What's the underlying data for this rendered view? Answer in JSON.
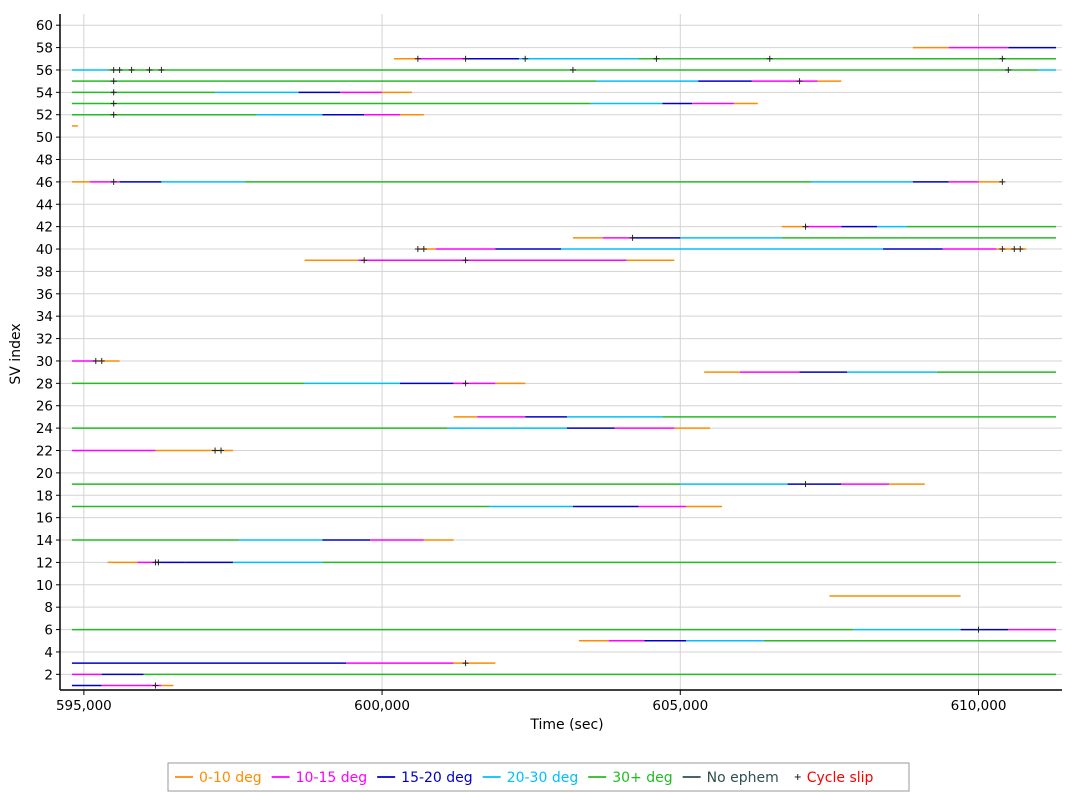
{
  "chart_data": {
    "type": "line",
    "title": "",
    "xlabel": "Time (sec)",
    "ylabel": "SV index",
    "xlim": [
      594600,
      611400
    ],
    "ylim": [
      0.6,
      61
    ],
    "x_ticks": [
      595000,
      600000,
      605000,
      610000
    ],
    "x_tick_labels": [
      "595,000",
      "600,000",
      "605,000",
      "610,000"
    ],
    "y_ticks": [
      2,
      4,
      6,
      8,
      10,
      12,
      14,
      16,
      18,
      20,
      22,
      24,
      26,
      28,
      30,
      32,
      34,
      36,
      38,
      40,
      42,
      44,
      46,
      48,
      50,
      52,
      54,
      56,
      58,
      60
    ],
    "grid": true,
    "legend_position": "bottom",
    "legend": [
      {
        "key": "c0",
        "label": "0-10 deg",
        "color": "#ff8c00",
        "marker": "line"
      },
      {
        "key": "c1",
        "label": "10-15 deg",
        "color": "#ff00ff",
        "marker": "line"
      },
      {
        "key": "c2",
        "label": "15-20 deg",
        "color": "#0000cd",
        "marker": "line"
      },
      {
        "key": "c3",
        "label": "20-30 deg",
        "color": "#00bfff",
        "marker": "line"
      },
      {
        "key": "c4",
        "label": "30+ deg",
        "color": "#22bb22",
        "marker": "line"
      },
      {
        "key": "ne",
        "label": "No ephem",
        "color": "#2f4f4f",
        "marker": "line"
      },
      {
        "key": "cs",
        "label": "Cycle slip",
        "color": "#ff0000",
        "marker": "plus"
      }
    ],
    "tracks": [
      {
        "sv": 1,
        "segments": [
          [
            594800,
            595300,
            "c2"
          ],
          [
            595300,
            596300,
            "c1"
          ],
          [
            596300,
            596500,
            "c0"
          ]
        ]
      },
      {
        "sv": 2,
        "segments": [
          [
            594800,
            595300,
            "c1"
          ],
          [
            595300,
            596000,
            "c2"
          ],
          [
            596000,
            611300,
            "c4"
          ]
        ]
      },
      {
        "sv": 3,
        "segments": [
          [
            594800,
            599400,
            "c2"
          ],
          [
            599400,
            601200,
            "c1"
          ],
          [
            601200,
            601900,
            "c0"
          ]
        ]
      },
      {
        "sv": 5,
        "segments": [
          [
            603300,
            603800,
            "c0"
          ],
          [
            603800,
            604400,
            "c1"
          ],
          [
            604400,
            605100,
            "c2"
          ],
          [
            605100,
            606400,
            "c3"
          ],
          [
            606400,
            611300,
            "c4"
          ]
        ]
      },
      {
        "sv": 6,
        "segments": [
          [
            594800,
            607900,
            "c4"
          ],
          [
            607900,
            609700,
            "c3"
          ],
          [
            609700,
            610500,
            "c2"
          ],
          [
            610500,
            611300,
            "c1"
          ]
        ]
      },
      {
        "sv": 9,
        "segments": [
          [
            607500,
            609700,
            "c0"
          ]
        ]
      },
      {
        "sv": 12,
        "segments": [
          [
            595400,
            595900,
            "c0"
          ],
          [
            595900,
            596200,
            "c1"
          ],
          [
            596200,
            596700,
            "c2"
          ],
          [
            596700,
            597500,
            "c2"
          ],
          [
            597500,
            599000,
            "c3"
          ],
          [
            599000,
            611300,
            "c4"
          ]
        ]
      },
      {
        "sv": 14,
        "segments": [
          [
            594800,
            597600,
            "c4"
          ],
          [
            597600,
            599000,
            "c3"
          ],
          [
            599000,
            599800,
            "c2"
          ],
          [
            599800,
            600700,
            "c1"
          ],
          [
            600700,
            601200,
            "c0"
          ]
        ]
      },
      {
        "sv": 17,
        "segments": [
          [
            594800,
            601800,
            "c4"
          ],
          [
            601800,
            603200,
            "c3"
          ],
          [
            603200,
            604300,
            "c2"
          ],
          [
            604300,
            605100,
            "c1"
          ],
          [
            605100,
            605700,
            "c0"
          ]
        ]
      },
      {
        "sv": 19,
        "segments": [
          [
            594800,
            605000,
            "c4"
          ],
          [
            605000,
            606800,
            "c3"
          ],
          [
            606800,
            607700,
            "c2"
          ],
          [
            607700,
            608500,
            "c1"
          ],
          [
            608500,
            609100,
            "c0"
          ]
        ]
      },
      {
        "sv": 22,
        "segments": [
          [
            594800,
            596200,
            "c1"
          ],
          [
            596200,
            597500,
            "c0"
          ]
        ]
      },
      {
        "sv": 24,
        "segments": [
          [
            594800,
            601100,
            "c4"
          ],
          [
            601100,
            603100,
            "c3"
          ],
          [
            603100,
            603900,
            "c2"
          ],
          [
            603900,
            604900,
            "c1"
          ],
          [
            604900,
            605500,
            "c0"
          ]
        ]
      },
      {
        "sv": 25,
        "segments": [
          [
            601200,
            601600,
            "c0"
          ],
          [
            601600,
            602400,
            "c1"
          ],
          [
            602400,
            603100,
            "c2"
          ],
          [
            603100,
            604700,
            "c3"
          ],
          [
            604700,
            611300,
            "c4"
          ]
        ]
      },
      {
        "sv": 28,
        "segments": [
          [
            594800,
            598700,
            "c4"
          ],
          [
            598700,
            600300,
            "c3"
          ],
          [
            600300,
            601200,
            "c2"
          ],
          [
            601200,
            601900,
            "c1"
          ],
          [
            601900,
            602400,
            "c0"
          ]
        ]
      },
      {
        "sv": 29,
        "segments": [
          [
            605400,
            606000,
            "c0"
          ],
          [
            606000,
            607000,
            "c1"
          ],
          [
            607000,
            607800,
            "c2"
          ],
          [
            607800,
            609300,
            "c3"
          ],
          [
            609300,
            611300,
            "c4"
          ]
        ]
      },
      {
        "sv": 30,
        "segments": [
          [
            594800,
            595200,
            "c1"
          ],
          [
            595200,
            595600,
            "c0"
          ]
        ]
      },
      {
        "sv": 39,
        "segments": [
          [
            598700,
            599600,
            "c0"
          ],
          [
            599600,
            604100,
            "c1"
          ],
          [
            604100,
            604900,
            "c0"
          ]
        ]
      },
      {
        "sv": 40,
        "segments": [
          [
            600600,
            600900,
            "c0"
          ],
          [
            600900,
            601900,
            "c1"
          ],
          [
            601900,
            603000,
            "c2"
          ],
          [
            603000,
            608400,
            "c3"
          ],
          [
            608400,
            609400,
            "c2"
          ],
          [
            609400,
            610300,
            "c1"
          ],
          [
            610300,
            610800,
            "c0"
          ]
        ]
      },
      {
        "sv": 41,
        "segments": [
          [
            603200,
            603700,
            "c0"
          ],
          [
            603700,
            604200,
            "c1"
          ],
          [
            604200,
            605000,
            "c2"
          ],
          [
            605000,
            606700,
            "c3"
          ],
          [
            606700,
            611300,
            "c4"
          ]
        ]
      },
      {
        "sv": 42,
        "segments": [
          [
            606700,
            607100,
            "c0"
          ],
          [
            607100,
            607700,
            "c1"
          ],
          [
            607700,
            608300,
            "c2"
          ],
          [
            608300,
            608800,
            "c3"
          ],
          [
            608800,
            611300,
            "c4"
          ]
        ]
      },
      {
        "sv": 46,
        "segments": [
          [
            594800,
            595100,
            "c0"
          ],
          [
            595100,
            595600,
            "c1"
          ],
          [
            595600,
            596300,
            "c2"
          ],
          [
            596300,
            597700,
            "c3"
          ],
          [
            597700,
            607200,
            "c4"
          ],
          [
            607200,
            608900,
            "c3"
          ],
          [
            608900,
            609500,
            "c2"
          ],
          [
            609500,
            610000,
            "c1"
          ],
          [
            610000,
            610400,
            "c0"
          ]
        ]
      },
      {
        "sv": 51,
        "segments": [
          [
            594800,
            594900,
            "c0"
          ]
        ]
      },
      {
        "sv": 52,
        "segments": [
          [
            594800,
            597900,
            "c4"
          ],
          [
            597900,
            599000,
            "c3"
          ],
          [
            599000,
            599700,
            "c2"
          ],
          [
            599700,
            600300,
            "c1"
          ],
          [
            600300,
            600700,
            "c0"
          ]
        ]
      },
      {
        "sv": 53,
        "segments": [
          [
            594800,
            603500,
            "c4"
          ],
          [
            603500,
            604700,
            "c3"
          ],
          [
            604700,
            605200,
            "c2"
          ],
          [
            605200,
            605900,
            "c1"
          ],
          [
            605900,
            606300,
            "c0"
          ]
        ]
      },
      {
        "sv": 54,
        "segments": [
          [
            594800,
            597200,
            "c4"
          ],
          [
            597200,
            598600,
            "c3"
          ],
          [
            598600,
            599300,
            "c2"
          ],
          [
            599300,
            600000,
            "c1"
          ],
          [
            600000,
            600500,
            "c0"
          ]
        ]
      },
      {
        "sv": 55,
        "segments": [
          [
            594800,
            603600,
            "c4"
          ],
          [
            603600,
            605300,
            "c3"
          ],
          [
            605300,
            606200,
            "c2"
          ],
          [
            606200,
            607300,
            "c1"
          ],
          [
            607300,
            607700,
            "c0"
          ]
        ]
      },
      {
        "sv": 56,
        "segments": [
          [
            594800,
            595400,
            "c3"
          ],
          [
            595400,
            611000,
            "c4"
          ],
          [
            611000,
            611300,
            "c3"
          ]
        ]
      },
      {
        "sv": 57,
        "segments": [
          [
            600200,
            600600,
            "c0"
          ],
          [
            600600,
            601400,
            "c1"
          ],
          [
            601400,
            602300,
            "c2"
          ],
          [
            602300,
            604300,
            "c3"
          ],
          [
            604300,
            611300,
            "c4"
          ]
        ]
      },
      {
        "sv": 58,
        "segments": [
          [
            608900,
            609500,
            "c0"
          ],
          [
            609500,
            610500,
            "c1"
          ],
          [
            610500,
            611300,
            "c2"
          ]
        ]
      }
    ],
    "cycle_slips": [
      [
        596200,
        1
      ],
      [
        601400,
        3
      ],
      [
        610000,
        6
      ],
      [
        596200,
        12
      ],
      [
        596250,
        12
      ],
      [
        601400,
        28
      ],
      [
        595200,
        30
      ],
      [
        595300,
        30
      ],
      [
        607100,
        19
      ],
      [
        597200,
        22
      ],
      [
        597300,
        22
      ],
      [
        599700,
        39
      ],
      [
        601400,
        39
      ],
      [
        600600,
        40
      ],
      [
        600700,
        40
      ],
      [
        610400,
        40
      ],
      [
        610600,
        40
      ],
      [
        610700,
        40
      ],
      [
        604200,
        41
      ],
      [
        607100,
        42
      ],
      [
        595500,
        46
      ],
      [
        610400,
        46
      ],
      [
        595500,
        52
      ],
      [
        595500,
        53
      ],
      [
        595500,
        54
      ],
      [
        595500,
        55
      ],
      [
        607000,
        55
      ],
      [
        595500,
        56
      ],
      [
        595600,
        56
      ],
      [
        595800,
        56
      ],
      [
        596100,
        56
      ],
      [
        596300,
        56
      ],
      [
        603200,
        56
      ],
      [
        610500,
        56
      ],
      [
        600600,
        57
      ],
      [
        601400,
        57
      ],
      [
        602400,
        57
      ],
      [
        604600,
        57
      ],
      [
        606500,
        57
      ],
      [
        610400,
        57
      ]
    ]
  }
}
